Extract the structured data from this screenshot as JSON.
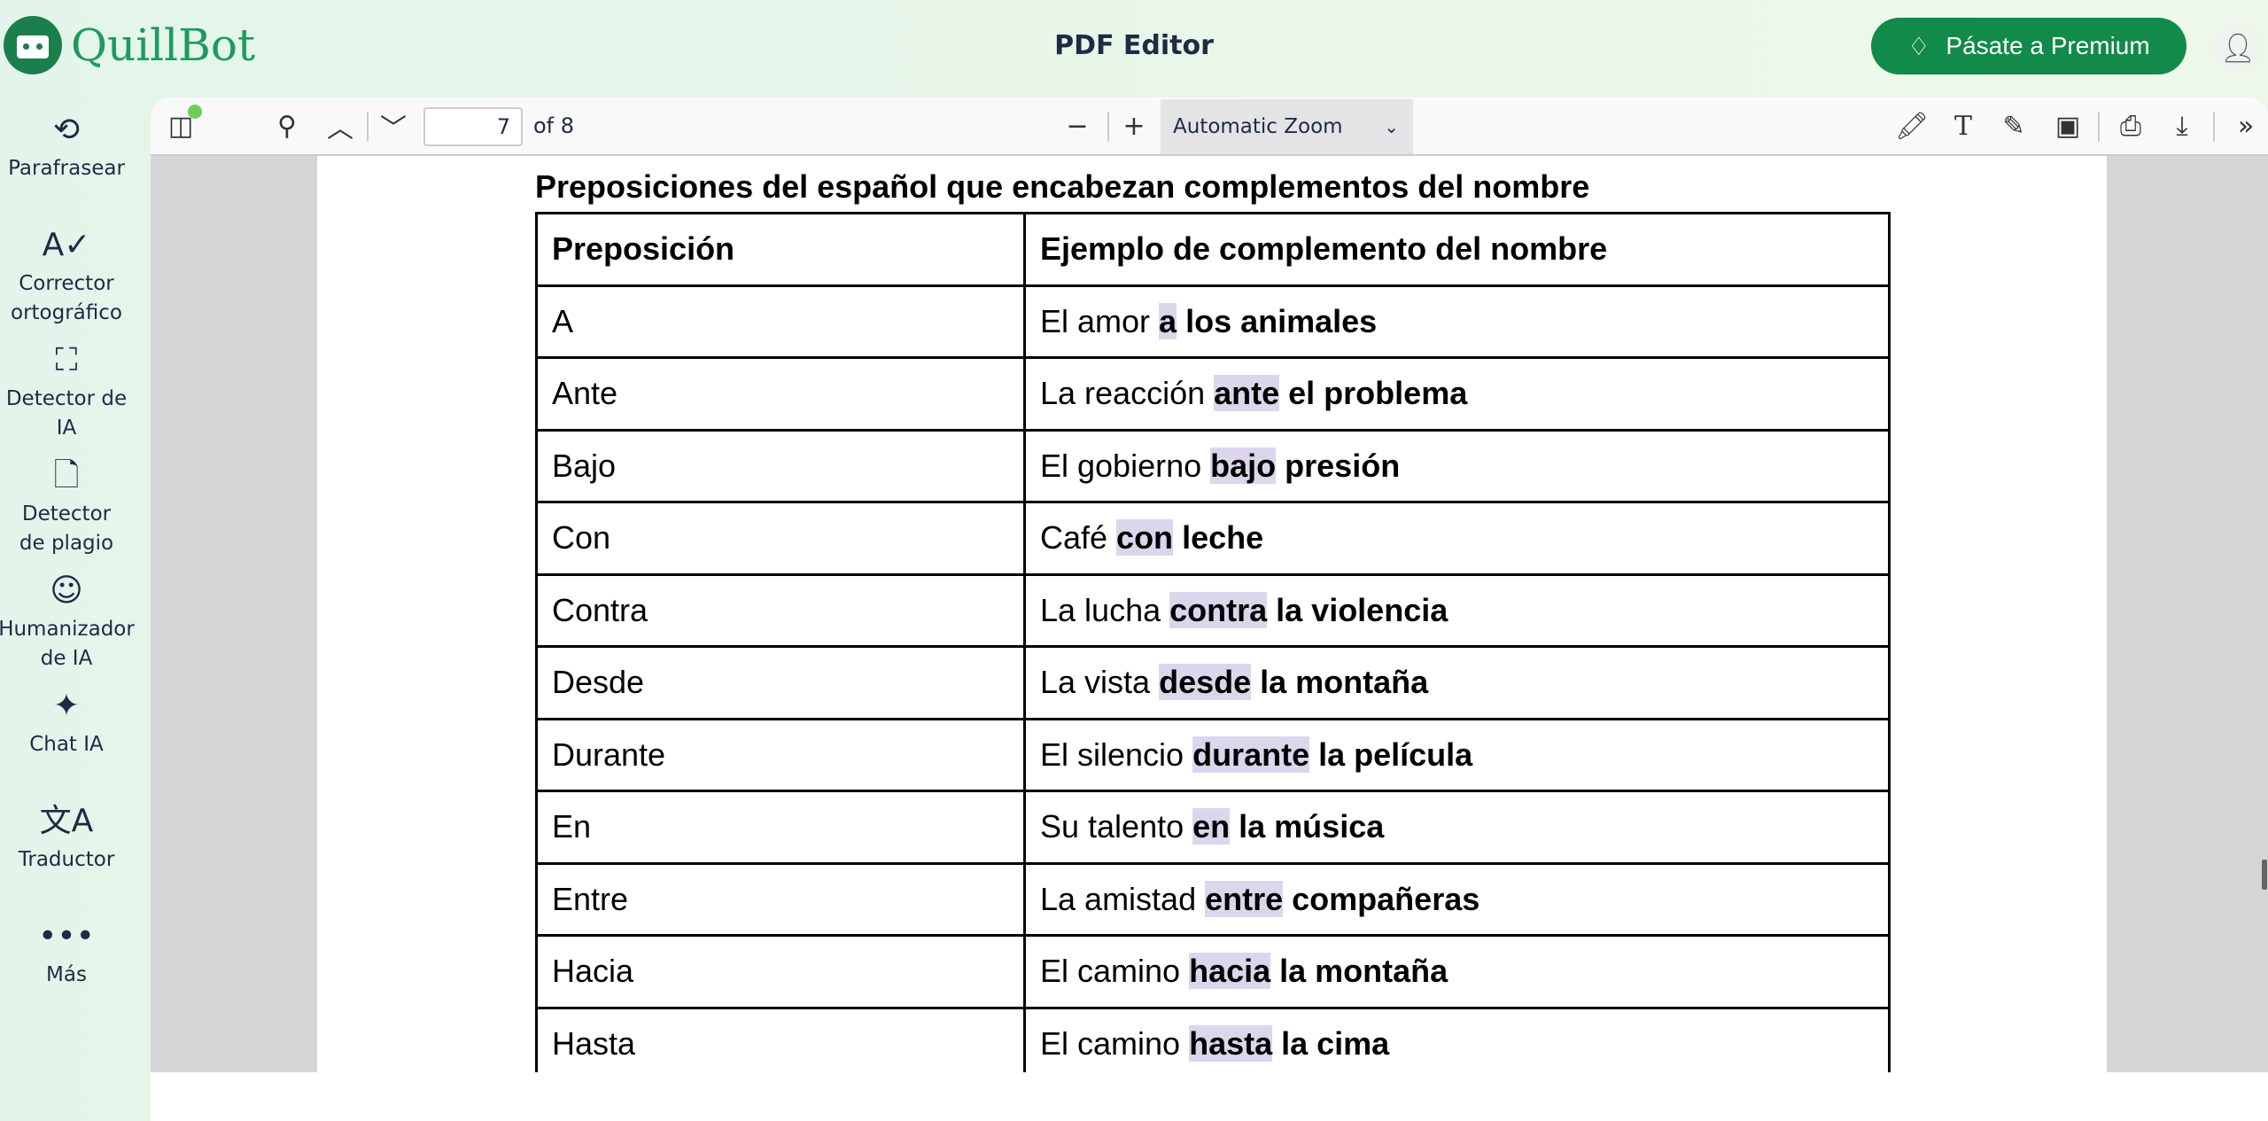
{
  "header": {
    "brand": "QuillBot",
    "title": "PDF Editor",
    "premium_label": "Pásate a Premium",
    "colors": {
      "brand": "#128a4a",
      "highlight": "#dcd6ec"
    }
  },
  "sidebar": {
    "items": [
      {
        "icon": "paraphrase-icon",
        "label": "Parafrasear"
      },
      {
        "icon": "grammar-check-icon",
        "label": "Corrector\nortográfico"
      },
      {
        "icon": "ai-detector-icon",
        "label": "Detector de IA"
      },
      {
        "icon": "plagiarism-icon",
        "label": "Detector\nde plagio"
      },
      {
        "icon": "humanizer-icon",
        "label": "Humanizador\nde IA"
      },
      {
        "icon": "chat-icon",
        "label": "Chat IA"
      },
      {
        "icon": "translate-icon",
        "label": "Traductor"
      },
      {
        "icon": "more-icon",
        "label": "Más"
      }
    ]
  },
  "toolbar": {
    "page": "7",
    "page_count": "of 8",
    "zoom": "Automatic Zoom"
  },
  "document": {
    "title": "Preposiciones del español que encabezan complementos del nombre",
    "headers": [
      "Preposición",
      "Ejemplo de complemento del nombre"
    ],
    "rows": [
      {
        "prep": "A",
        "pre": "El amor ",
        "hl": "a",
        "post": " los animales"
      },
      {
        "prep": "Ante",
        "pre": "La reacción ",
        "hl": "ante",
        "post": " el problema"
      },
      {
        "prep": "Bajo",
        "pre": "El gobierno ",
        "hl": "bajo",
        "post": " presión"
      },
      {
        "prep": "Con",
        "pre": "Café ",
        "hl": "con",
        "post": " leche"
      },
      {
        "prep": "Contra",
        "pre": "La lucha ",
        "hl": "contra",
        "post": " la violencia"
      },
      {
        "prep": "Desde",
        "pre": "La vista ",
        "hl": "desde",
        "post": " la montaña"
      },
      {
        "prep": "Durante",
        "pre": "El silencio ",
        "hl": "durante",
        "post": " la película"
      },
      {
        "prep": "En",
        "pre": "Su talento ",
        "hl": "en",
        "post": " la música"
      },
      {
        "prep": "Entre",
        "pre": "La amistad ",
        "hl": "entre",
        "post": " compañeras"
      },
      {
        "prep": "Hacia",
        "pre": "El camino ",
        "hl": "hacia",
        "post": " la montaña"
      },
      {
        "prep": "Hasta",
        "pre": "El camino ",
        "hl": "hasta",
        "post": " la cima"
      }
    ]
  }
}
